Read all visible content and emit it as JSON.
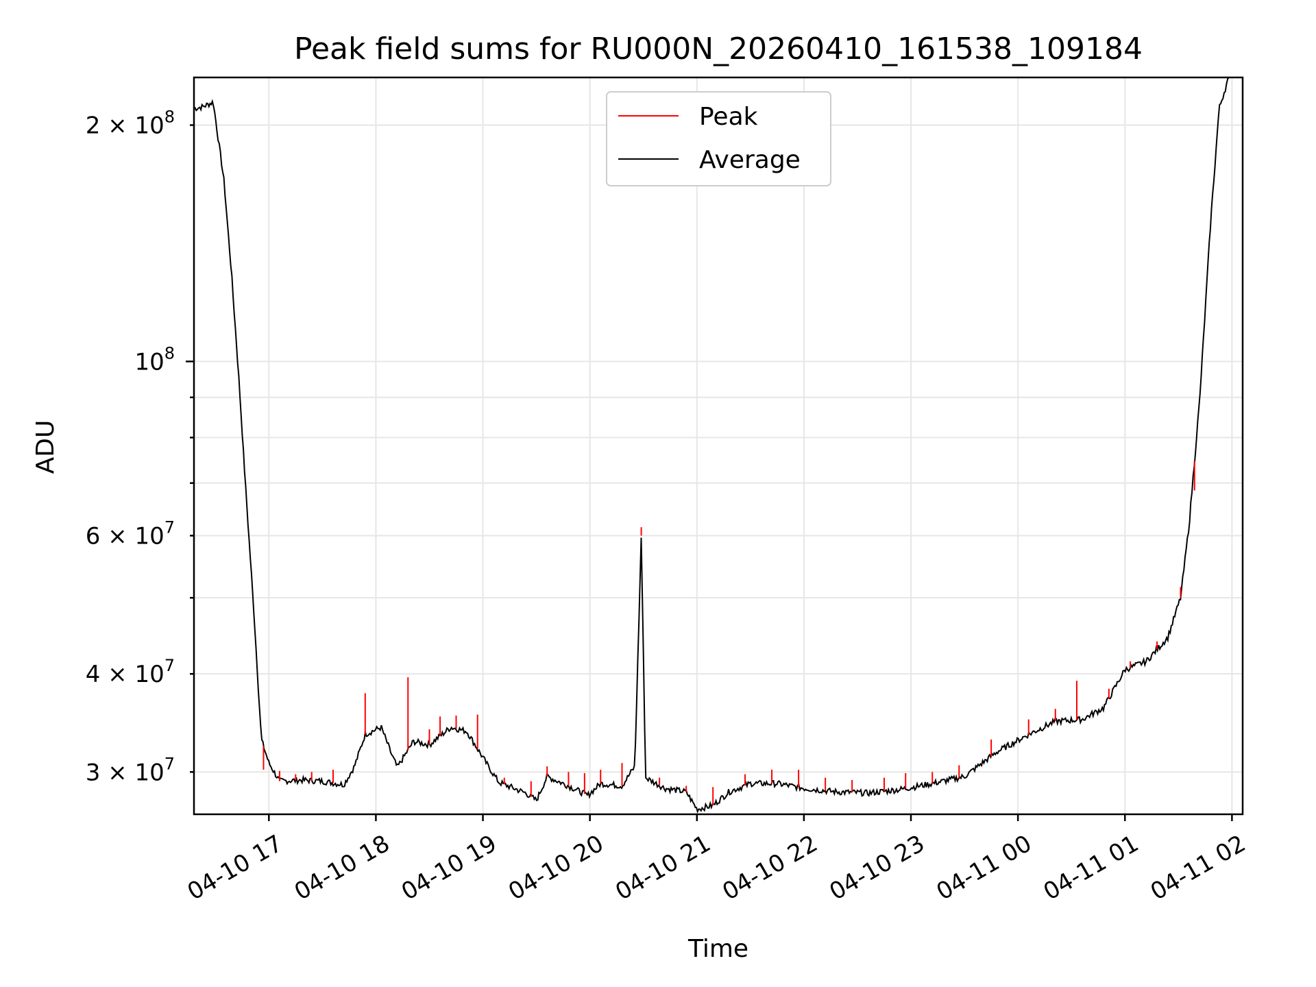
{
  "chart_data": {
    "type": "line",
    "title": "Peak field sums for RU000N_20260410_161538_109184",
    "xlabel": "Time",
    "ylabel": "ADU",
    "yscale": "log",
    "ylim": [
      26500000,
      230000000
    ],
    "xlim_hours": [
      16.3,
      26.1
    ],
    "grid": true,
    "legend_position": "upper-center",
    "x_ticks": [
      {
        "hour": 17,
        "label": "04-10 17"
      },
      {
        "hour": 18,
        "label": "04-10 18"
      },
      {
        "hour": 19,
        "label": "04-10 19"
      },
      {
        "hour": 20,
        "label": "04-10 20"
      },
      {
        "hour": 21,
        "label": "04-10 21"
      },
      {
        "hour": 22,
        "label": "04-10 22"
      },
      {
        "hour": 23,
        "label": "04-10 23"
      },
      {
        "hour": 24,
        "label": "04-11 00"
      },
      {
        "hour": 25,
        "label": "04-11 01"
      },
      {
        "hour": 26,
        "label": "04-11 02"
      }
    ],
    "y_major_ticks": [
      {
        "value": 100000000,
        "base": "10",
        "exp": "8"
      }
    ],
    "y_minor_labels": [
      {
        "value": 200000000,
        "mant": "2",
        "exp": "8"
      },
      {
        "value": 60000000,
        "mant": "6",
        "exp": "7"
      },
      {
        "value": 40000000,
        "mant": "4",
        "exp": "7"
      },
      {
        "value": 30000000,
        "mant": "3",
        "exp": "7"
      }
    ],
    "y_minor_ticks": [
      30000000,
      40000000,
      50000000,
      60000000,
      70000000,
      80000000,
      90000000,
      200000000
    ],
    "series": [
      {
        "name": "Peak",
        "color": "#ff0000",
        "spikes": [
          {
            "hour": 16.95,
            "value": 30200000
          },
          {
            "hour": 17.1,
            "value": 30100000
          },
          {
            "hour": 17.25,
            "value": 29800000
          },
          {
            "hour": 17.4,
            "value": 30000000
          },
          {
            "hour": 17.6,
            "value": 30200000
          },
          {
            "hour": 17.9,
            "value": 37800000
          },
          {
            "hour": 18.3,
            "value": 39600000
          },
          {
            "hour": 18.5,
            "value": 34000000
          },
          {
            "hour": 18.6,
            "value": 35300000
          },
          {
            "hour": 18.75,
            "value": 35400000
          },
          {
            "hour": 18.95,
            "value": 35500000
          },
          {
            "hour": 19.2,
            "value": 29500000
          },
          {
            "hour": 19.45,
            "value": 29200000
          },
          {
            "hour": 19.6,
            "value": 30500000
          },
          {
            "hour": 19.8,
            "value": 30000000
          },
          {
            "hour": 19.95,
            "value": 29900000
          },
          {
            "hour": 20.1,
            "value": 30200000
          },
          {
            "hour": 20.3,
            "value": 30800000
          },
          {
            "hour": 20.48,
            "value": 61500000
          },
          {
            "hour": 20.65,
            "value": 29500000
          },
          {
            "hour": 20.9,
            "value": 28800000
          },
          {
            "hour": 21.15,
            "value": 28700000
          },
          {
            "hour": 21.45,
            "value": 29800000
          },
          {
            "hour": 21.7,
            "value": 30200000
          },
          {
            "hour": 21.95,
            "value": 30200000
          },
          {
            "hour": 22.2,
            "value": 29500000
          },
          {
            "hour": 22.45,
            "value": 29300000
          },
          {
            "hour": 22.75,
            "value": 29500000
          },
          {
            "hour": 22.95,
            "value": 29900000
          },
          {
            "hour": 23.2,
            "value": 30000000
          },
          {
            "hour": 23.45,
            "value": 30600000
          },
          {
            "hour": 23.75,
            "value": 33000000
          },
          {
            "hour": 24.1,
            "value": 35000000
          },
          {
            "hour": 24.35,
            "value": 36100000
          },
          {
            "hour": 24.55,
            "value": 39200000
          },
          {
            "hour": 24.85,
            "value": 38300000
          },
          {
            "hour": 25.05,
            "value": 41500000
          },
          {
            "hour": 25.3,
            "value": 44000000
          },
          {
            "hour": 25.52,
            "value": 51600000
          },
          {
            "hour": 25.65,
            "value": 68500000
          }
        ]
      },
      {
        "name": "Average",
        "color": "#000000",
        "points": [
          {
            "hour": 16.3,
            "value": 210000000
          },
          {
            "hour": 16.38,
            "value": 211000000
          },
          {
            "hour": 16.48,
            "value": 214000000
          },
          {
            "hour": 16.58,
            "value": 170000000
          },
          {
            "hour": 16.65,
            "value": 130000000
          },
          {
            "hour": 16.72,
            "value": 95000000
          },
          {
            "hour": 16.78,
            "value": 70000000
          },
          {
            "hour": 16.86,
            "value": 48000000
          },
          {
            "hour": 16.93,
            "value": 33000000
          },
          {
            "hour": 17.0,
            "value": 30800000
          },
          {
            "hour": 17.1,
            "value": 29200000
          },
          {
            "hour": 17.3,
            "value": 29300000
          },
          {
            "hour": 17.5,
            "value": 29200000
          },
          {
            "hour": 17.7,
            "value": 28900000
          },
          {
            "hour": 17.8,
            "value": 30500000
          },
          {
            "hour": 17.9,
            "value": 33500000
          },
          {
            "hour": 18.05,
            "value": 34200000
          },
          {
            "hour": 18.15,
            "value": 31500000
          },
          {
            "hour": 18.2,
            "value": 30400000
          },
          {
            "hour": 18.35,
            "value": 32800000
          },
          {
            "hour": 18.5,
            "value": 32500000
          },
          {
            "hour": 18.7,
            "value": 34200000
          },
          {
            "hour": 18.85,
            "value": 33800000
          },
          {
            "hour": 19.05,
            "value": 30500000
          },
          {
            "hour": 19.15,
            "value": 29100000
          },
          {
            "hour": 19.4,
            "value": 28200000
          },
          {
            "hour": 19.5,
            "value": 27600000
          },
          {
            "hour": 19.6,
            "value": 29600000
          },
          {
            "hour": 19.8,
            "value": 28800000
          },
          {
            "hour": 19.98,
            "value": 28000000
          },
          {
            "hour": 20.1,
            "value": 29000000
          },
          {
            "hour": 20.3,
            "value": 28800000
          },
          {
            "hour": 20.42,
            "value": 30500000
          },
          {
            "hour": 20.48,
            "value": 60000000
          },
          {
            "hour": 20.52,
            "value": 29500000
          },
          {
            "hour": 20.7,
            "value": 28600000
          },
          {
            "hour": 20.9,
            "value": 28300000
          },
          {
            "hour": 21.0,
            "value": 26900000
          },
          {
            "hour": 21.15,
            "value": 27200000
          },
          {
            "hour": 21.3,
            "value": 28300000
          },
          {
            "hour": 21.5,
            "value": 29000000
          },
          {
            "hour": 21.75,
            "value": 29000000
          },
          {
            "hour": 22.0,
            "value": 28600000
          },
          {
            "hour": 22.3,
            "value": 28300000
          },
          {
            "hour": 22.6,
            "value": 28200000
          },
          {
            "hour": 22.9,
            "value": 28500000
          },
          {
            "hour": 23.2,
            "value": 29000000
          },
          {
            "hour": 23.5,
            "value": 29600000
          },
          {
            "hour": 23.8,
            "value": 31800000
          },
          {
            "hour": 24.1,
            "value": 33500000
          },
          {
            "hour": 24.35,
            "value": 34800000
          },
          {
            "hour": 24.6,
            "value": 35000000
          },
          {
            "hour": 24.8,
            "value": 36200000
          },
          {
            "hour": 25.0,
            "value": 40500000
          },
          {
            "hour": 25.2,
            "value": 41500000
          },
          {
            "hour": 25.4,
            "value": 44500000
          },
          {
            "hour": 25.52,
            "value": 50000000
          },
          {
            "hour": 25.6,
            "value": 62000000
          },
          {
            "hour": 25.7,
            "value": 90000000
          },
          {
            "hour": 25.8,
            "value": 150000000
          },
          {
            "hour": 25.88,
            "value": 210000000
          },
          {
            "hour": 25.97,
            "value": 230000000
          }
        ]
      }
    ]
  }
}
